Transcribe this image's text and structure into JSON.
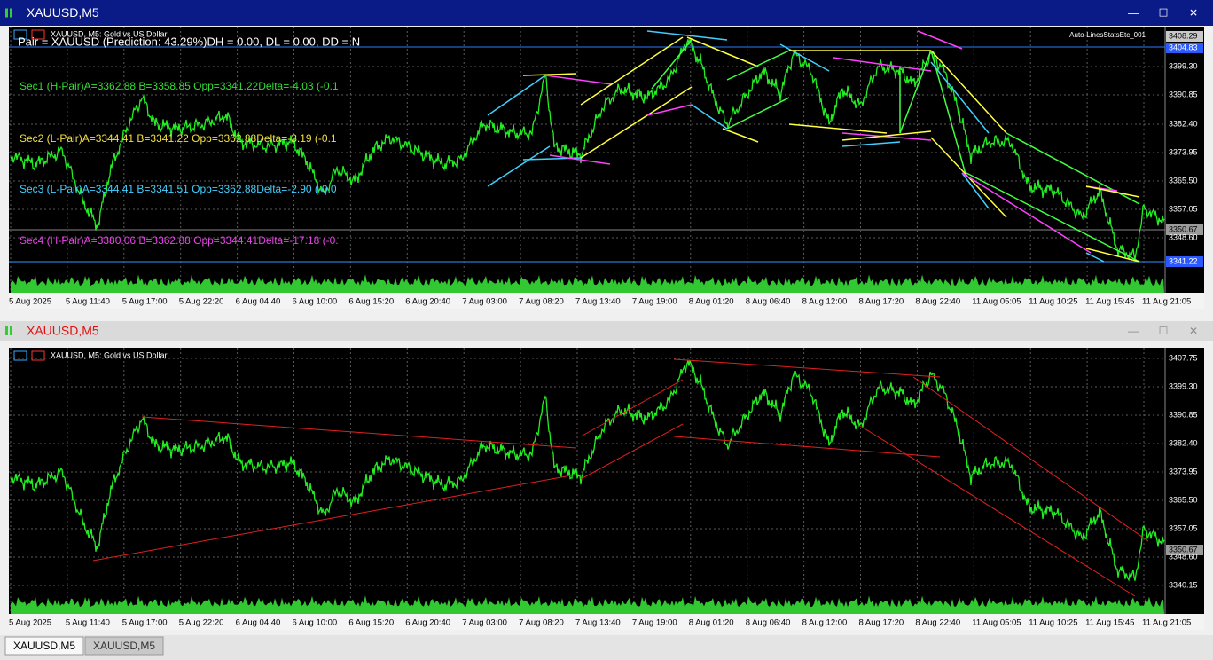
{
  "windows": [
    {
      "title": "XAUUSD,M5",
      "header": "XAUUSD, M5:  Gold vs US Dollar",
      "indicator": "Auto-LinesStatsEtc_001",
      "info_lines": [
        "Pair = XAUUSD (Prediction: 43.29%)DH = 0.00, DL = 0.00, DD = N",
        "Sec1 (H-Pair)A=3362.88 B=3358.85 Opp=3341.22Delta=-4.03 (-0.1",
        "Sec2 (L-Pair)A=3344.41 B=3341.22 Opp=3362.88Delta=-3.19 (-0.1",
        "Sec3 (L-Pair)A=3344.41 B=3341.51 Opp=3362.88Delta=-2.90 (-0.0",
        "Sec4 (H-Pair)A=3380.06 B=3362.88 Opp=3344.41Delta=-17.18 (-0."
      ],
      "price_labels": [
        "3408.29",
        "3404.83",
        "3399.30",
        "3390.85",
        "3382.40",
        "3373.95",
        "3365.50",
        "3357.05",
        "3350.67",
        "3348.60",
        "3341.22"
      ],
      "time_labels": [
        "5 Aug 2025",
        "5 Aug 11:40",
        "5 Aug 17:00",
        "5 Aug 22:20",
        "6 Aug 04:40",
        "6 Aug 10:00",
        "6 Aug 15:20",
        "6 Aug 20:40",
        "7 Aug 03:00",
        "7 Aug 08:20",
        "7 Aug 13:40",
        "7 Aug 19:00",
        "8 Aug 01:20",
        "8 Aug 06:40",
        "8 Aug 12:00",
        "8 Aug 17:20",
        "8 Aug 22:40",
        "11 Aug 05:05",
        "11 Aug 10:25",
        "11 Aug 15:45",
        "11 Aug 21:05"
      ]
    },
    {
      "title": "XAUUSD,M5",
      "header": "XAUUSD, M5:  Gold vs US Dollar",
      "price_labels": [
        "3407.75",
        "3399.30",
        "3390.85",
        "3382.40",
        "3373.95",
        "3365.50",
        "3357.05",
        "3350.67",
        "3348.60",
        "3340.15"
      ],
      "time_labels": [
        "5 Aug 2025",
        "5 Aug 11:40",
        "5 Aug 17:00",
        "5 Aug 22:20",
        "6 Aug 04:40",
        "6 Aug 10:00",
        "6 Aug 15:20",
        "6 Aug 20:40",
        "7 Aug 03:00",
        "7 Aug 08:20",
        "7 Aug 13:40",
        "7 Aug 19:00",
        "8 Aug 01:20",
        "8 Aug 06:40",
        "8 Aug 12:00",
        "8 Aug 17:20",
        "8 Aug 22:40",
        "11 Aug 05:05",
        "11 Aug 10:25",
        "11 Aug 15:45",
        "11 Aug 21:05"
      ]
    }
  ],
  "tabs": [
    "XAUUSD,M5",
    "XAUUSD,M5"
  ]
}
